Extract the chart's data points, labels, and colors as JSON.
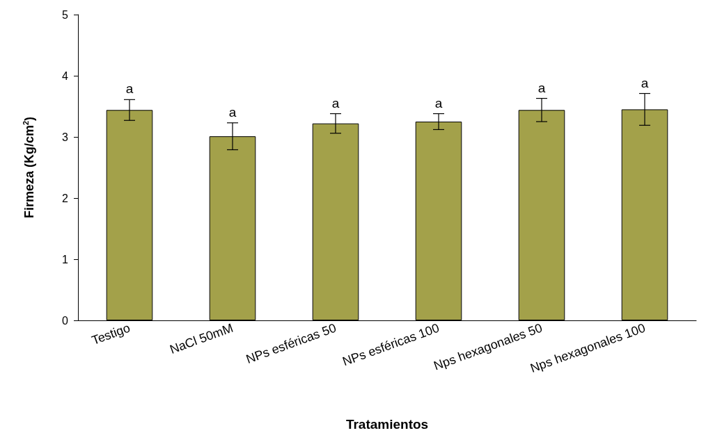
{
  "chart_data": {
    "type": "bar",
    "xlabel": "Tratamientos",
    "ylabel": "Firmeza (Kg/cm$^{2}$)",
    "categories": [
      "Testigo",
      "NaCl 50mM",
      "NPs esféricas 50",
      "NPs esféricas 100",
      "Nps hexagonales 50",
      "Nps hexagonales 100"
    ],
    "values": [
      3.44,
      3.01,
      3.22,
      3.25,
      3.44,
      3.45
    ],
    "errors": [
      0.17,
      0.22,
      0.16,
      0.13,
      0.19,
      0.26
    ],
    "color": "#a3a14a",
    "ylim": [
      0,
      5
    ],
    "yticks": [
      0,
      1,
      2,
      3,
      4,
      5
    ],
    "grid": false,
    "annotations": [
      {
        "text": "a",
        "x": "Testigo",
        "y": 3.61
      },
      {
        "text": "a",
        "x": "NaCl 50mM",
        "y": 3.23
      },
      {
        "text": "a",
        "x": "NPs esféricas 50",
        "y": 3.38
      },
      {
        "text": "a",
        "x": "NPs esféricas 100",
        "y": 3.38
      },
      {
        "text": "a",
        "x": "Nps hexagonales 50",
        "y": 3.63
      },
      {
        "text": "a",
        "x": "Nps hexagonales 100",
        "y": 3.71
      }
    ]
  }
}
